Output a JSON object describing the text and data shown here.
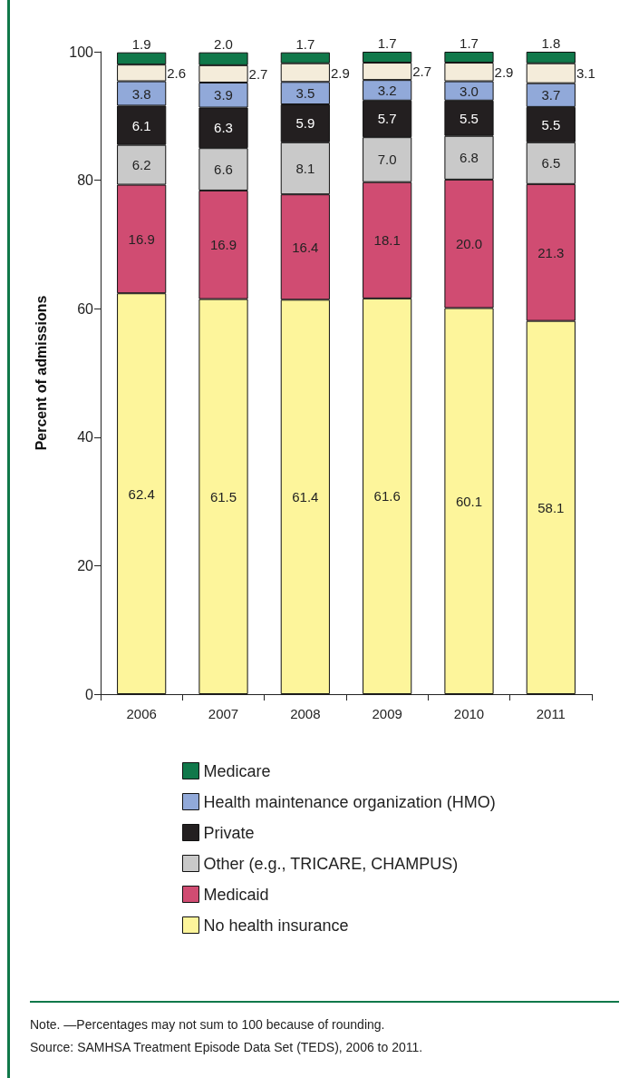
{
  "chart_data": {
    "type": "bar",
    "stacked": true,
    "ylabel": "Percent of admissions",
    "categories": [
      "2006",
      "2007",
      "2008",
      "2009",
      "2010",
      "2011"
    ],
    "series": [
      {
        "name": "No health insurance",
        "color": "#fdf59b",
        "values": [
          62.4,
          61.5,
          61.4,
          61.6,
          60.1,
          58.1
        ],
        "value_labels": [
          "62.4",
          "61.5",
          "61.4",
          "61.6",
          "60.1",
          "58.1"
        ]
      },
      {
        "name": "Medicaid",
        "color": "#d04c72",
        "values": [
          16.9,
          16.9,
          16.4,
          18.1,
          20.0,
          21.3
        ],
        "value_labels": [
          "16.9",
          "16.9",
          "16.4",
          "18.1",
          "20.0",
          "21.3"
        ]
      },
      {
        "name": "Other (e.g., TRICARE, CHAMPUS)",
        "color": "#c9c9c9",
        "values": [
          6.2,
          6.6,
          8.1,
          7.0,
          6.8,
          6.5
        ],
        "value_labels": [
          "6.2",
          "6.6",
          "8.1",
          "7.0",
          "6.8",
          "6.5"
        ]
      },
      {
        "name": "Private",
        "color": "#231f20",
        "values": [
          6.1,
          6.3,
          5.9,
          5.7,
          5.5,
          5.5
        ],
        "value_labels": [
          "6.1",
          "6.3",
          "5.9",
          "5.7",
          "5.5",
          "5.5"
        ]
      },
      {
        "name": "Health maintenance organization (HMO)",
        "color": "#91a9d9",
        "values": [
          3.8,
          3.9,
          3.5,
          3.2,
          3.0,
          3.7
        ],
        "value_labels": [
          "3.8",
          "3.9",
          "3.5",
          "3.2",
          "3.0",
          "3.7"
        ]
      },
      {
        "color": "#f4ecda",
        "values": [
          2.6,
          2.7,
          2.9,
          2.7,
          2.9,
          3.1
        ],
        "value_labels": [
          "2.6",
          "2.7",
          "2.9",
          "2.7",
          "2.9",
          "3.1"
        ]
      },
      {
        "name": "Medicare",
        "color": "#10784a",
        "values": [
          1.9,
          2.0,
          1.7,
          1.7,
          1.7,
          1.8
        ],
        "value_labels": [
          "1.9",
          "2.0",
          "1.7",
          "1.7",
          "1.7",
          "1.8"
        ]
      }
    ],
    "ylim": [
      0,
      100
    ],
    "yticks": [
      0,
      20,
      40,
      60,
      80,
      100
    ],
    "grid": false,
    "legend": "bottom",
    "annotations": [
      "Note. —Percentages may not sum to 100 because of rounding.",
      "Source: SAMHSA Treatment Episode Data Set (TEDS), 2006 to 2011."
    ]
  }
}
